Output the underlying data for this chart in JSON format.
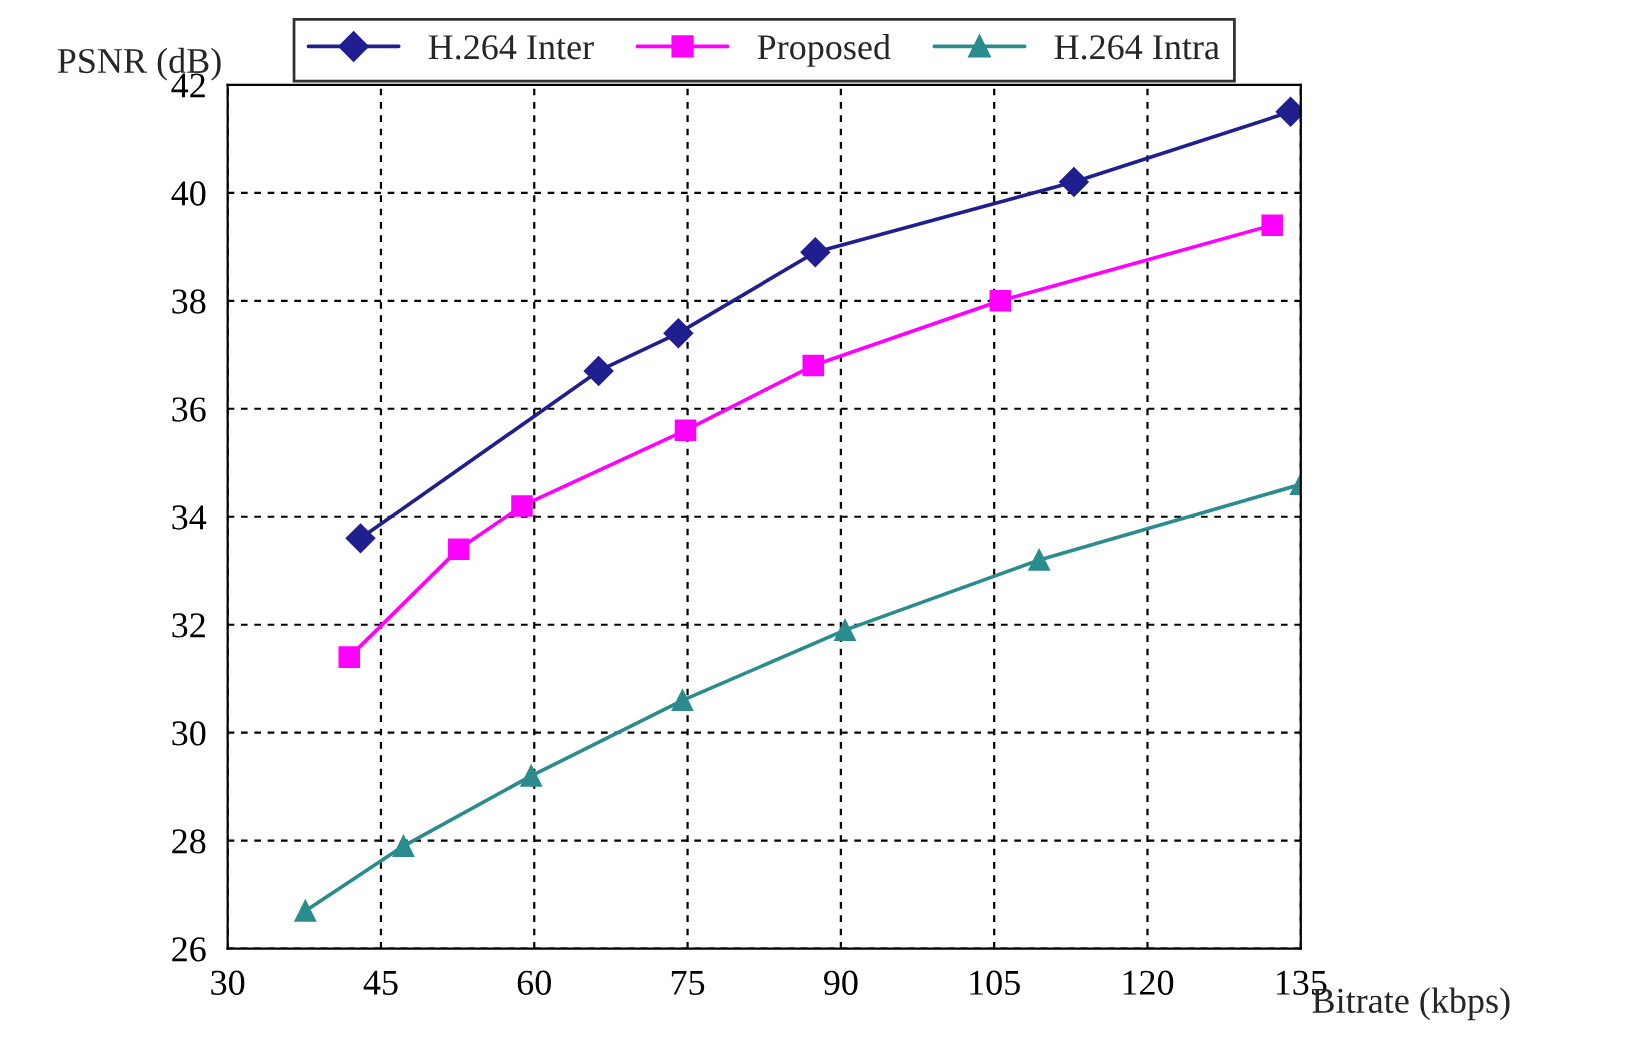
{
  "chart_data": {
    "type": "line",
    "xlabel": "Bitrate (kbps)",
    "ylabel": "PSNR (dB)",
    "xlim": [
      30,
      135
    ],
    "ylim": [
      26,
      42
    ],
    "xticks": [
      30,
      45,
      60,
      75,
      90,
      105,
      120,
      135
    ],
    "yticks": [
      26,
      28,
      30,
      32,
      34,
      36,
      38,
      40,
      42
    ],
    "grid": true,
    "legend": "top",
    "series": [
      {
        "name": "H.264 Inter",
        "color": "#1f1f8f",
        "marker": "diamond",
        "x": [
          43.0,
          66.3,
          74.1,
          87.5,
          112.8,
          134.0
        ],
        "values": [
          33.6,
          36.7,
          37.4,
          38.9,
          40.2,
          41.5
        ]
      },
      {
        "name": "Proposed",
        "color": "#ff00ff",
        "marker": "square",
        "x": [
          41.9,
          52.6,
          58.8,
          74.8,
          87.3,
          105.6,
          132.2
        ],
        "values": [
          31.4,
          33.4,
          34.2,
          35.6,
          36.8,
          38.0,
          39.4
        ]
      },
      {
        "name": "H.264 Intra",
        "color": "#2a8c8c",
        "marker": "triangle",
        "x": [
          37.6,
          47.2,
          59.7,
          74.5,
          90.4,
          109.4,
          135
        ],
        "values": [
          26.7,
          27.9,
          29.2,
          30.6,
          31.9,
          33.2,
          34.6
        ]
      }
    ]
  }
}
